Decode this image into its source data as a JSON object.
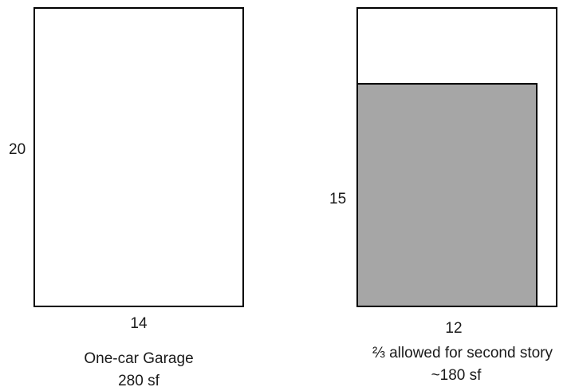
{
  "left_panel": {
    "height_label": "20",
    "width_label": "14",
    "caption_line1": "One-car Garage",
    "caption_line2": "280 sf",
    "outline_color": "#000000",
    "fill_color": "#ffffff"
  },
  "right_panel": {
    "height_label": "15",
    "width_label": "12",
    "caption_line1": "⅔ allowed for second story",
    "caption_line2": "~180 sf",
    "outline_color": "#000000",
    "shaded_fill_color": "#a6a6a6"
  }
}
